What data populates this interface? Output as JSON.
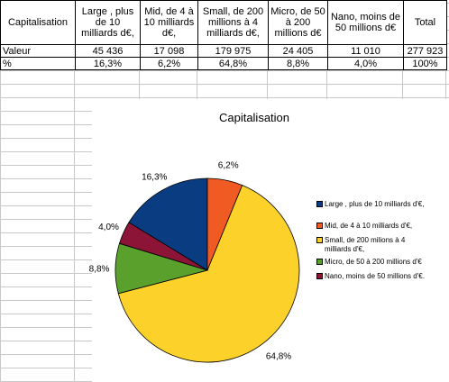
{
  "table": {
    "headers": [
      "Capitalisation",
      "Large , plus de 10 milliards d€,",
      "Mid, de 4 à 10 milliards d€,",
      "Small, de 200 millions à 4 milliards d€,",
      "Micro, de 50 à 200 millions d€",
      "Nano, moins de 50 millions d€",
      "Total"
    ],
    "rows": [
      {
        "label": "Valeur",
        "values": [
          "45 436",
          "17 098",
          "179 975",
          "24 405",
          "11 010",
          "277 923"
        ]
      },
      {
        "label": "%",
        "values": [
          "16,3%",
          "6,2%",
          "64,8%",
          "8,8%",
          "4,0%",
          "100%"
        ]
      }
    ]
  },
  "chart_data": {
    "type": "pie",
    "title": "Capitalisation",
    "slices": [
      {
        "label": "Large , plus de 10 milliards d'€,",
        "value": 16.3,
        "data_label": "16,3%",
        "color": "#0a3c82"
      },
      {
        "label": "Mid, de 4 à 10 milliards d'€,",
        "value": 6.2,
        "data_label": "6,2%",
        "color": "#f05a23"
      },
      {
        "label": "Small, de 200 milions à 4 milliards d'€,",
        "value": 64.8,
        "data_label": "64,8%",
        "color": "#fcd22a"
      },
      {
        "label": "Micro, de 50 à 200 millions d'€",
        "value": 8.8,
        "data_label": "8,8%",
        "color": "#5aa02c"
      },
      {
        "label": "Nano, moins de 50 millions d'€.",
        "value": 4.0,
        "data_label": "4,0%",
        "color": "#8c1437"
      }
    ],
    "legend_position": "right"
  }
}
